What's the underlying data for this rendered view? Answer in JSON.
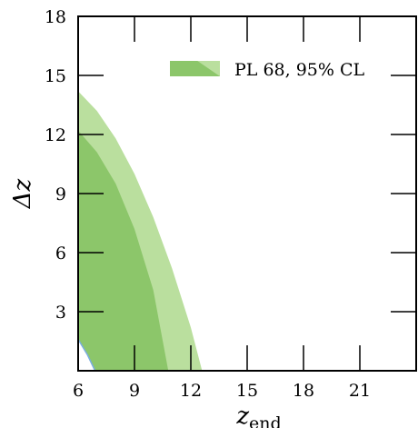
{
  "chart_data": {
    "type": "area",
    "xlabel_main": "z",
    "xlabel_sub": "end",
    "ylabel": "Δz",
    "xlim": [
      6,
      24
    ],
    "ylim": [
      0,
      18
    ],
    "xticks": [
      6,
      9,
      12,
      15,
      18,
      21
    ],
    "yticks": [
      3,
      6,
      9,
      12,
      15,
      18
    ],
    "legend": {
      "label": "PL 68, 95% CL",
      "placement": "top-right"
    },
    "colors": {
      "ci68": "#8cc66a",
      "ci95": "#badf9e",
      "line": "#7aaee0"
    },
    "series": [
      {
        "name": "95% CL",
        "upper": [
          [
            6,
            14.2
          ],
          [
            7,
            13.2
          ],
          [
            8,
            11.8
          ],
          [
            9,
            10.0
          ],
          [
            10,
            7.8
          ],
          [
            11,
            5.2
          ],
          [
            12,
            2.2
          ],
          [
            12.6,
            0
          ]
        ],
        "lower": [
          [
            6,
            4.3
          ],
          [
            7,
            3.7
          ],
          [
            8,
            2.6
          ],
          [
            9,
            0.9
          ],
          [
            9.3,
            0
          ]
        ]
      },
      {
        "name": "68% CL",
        "upper": [
          [
            6,
            12.2
          ],
          [
            7,
            11.1
          ],
          [
            8,
            9.5
          ],
          [
            9,
            7.2
          ],
          [
            10,
            4.1
          ],
          [
            10.8,
            0
          ]
        ],
        "lower": [
          [
            6,
            1.6
          ],
          [
            6.5,
            0.8
          ],
          [
            6.9,
            0
          ]
        ]
      }
    ]
  }
}
